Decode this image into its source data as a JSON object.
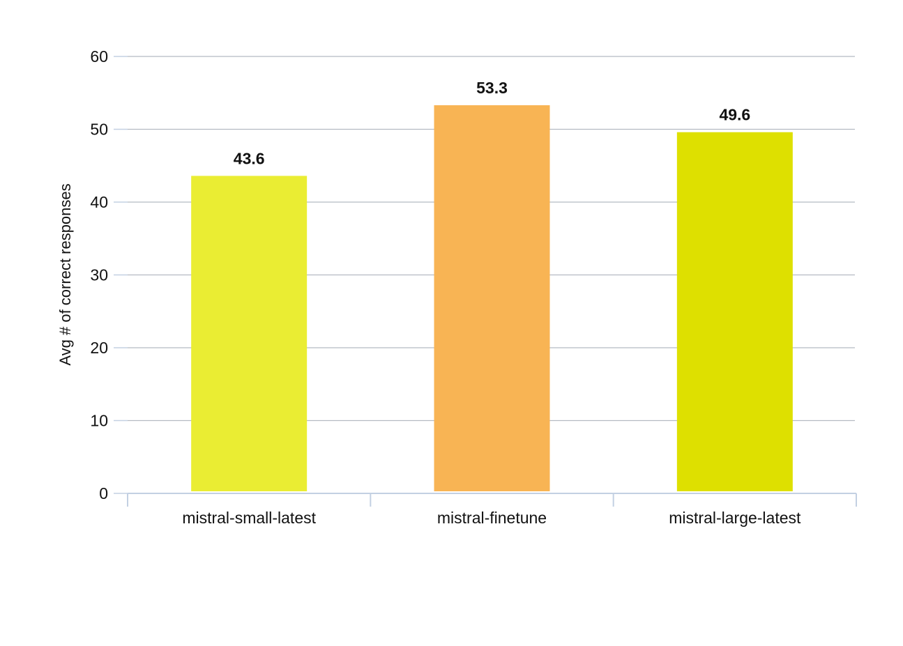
{
  "chart_data": {
    "type": "bar",
    "title": "",
    "xlabel": "",
    "ylabel": "Avg # of correct responses",
    "categories": [
      "mistral-small-latest",
      "mistral-finetune",
      "mistral-large-latest"
    ],
    "values": [
      43.6,
      53.3,
      49.6
    ],
    "data_labels": [
      "43.6",
      "53.3",
      "49.6"
    ],
    "colors": [
      "#EAED33",
      "#F8B454",
      "#DEE000"
    ],
    "ylim": [
      0,
      60
    ],
    "yticks": [
      0,
      10,
      20,
      30,
      40,
      50,
      60
    ],
    "grid": true,
    "legend": "none",
    "grid_color": "#B4BAC2",
    "axis_color": "#C3D0E2"
  }
}
